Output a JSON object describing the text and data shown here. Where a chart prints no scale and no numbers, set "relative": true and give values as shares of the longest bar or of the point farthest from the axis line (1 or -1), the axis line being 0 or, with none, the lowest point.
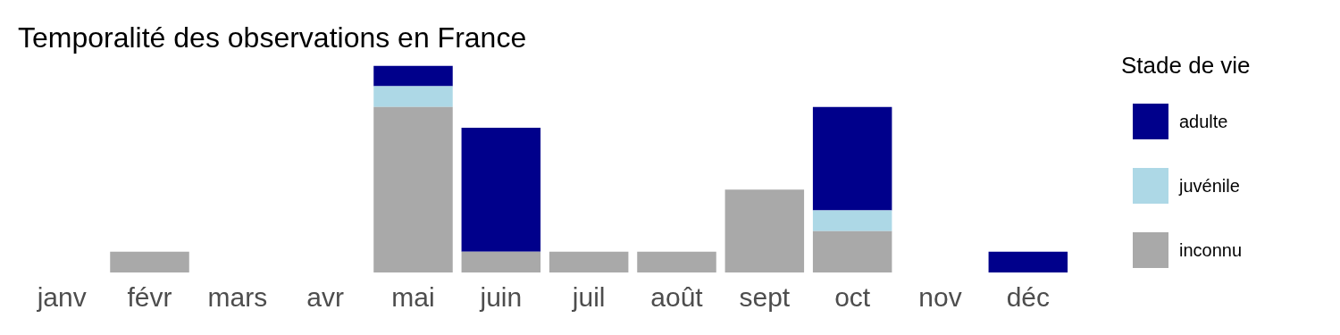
{
  "chart_data": {
    "type": "bar",
    "title": "Temporalité des observations en France",
    "legend_title": "Stade de vie",
    "categories": [
      "janv",
      "févr",
      "mars",
      "avr",
      "mai",
      "juin",
      "juil",
      "août",
      "sept",
      "oct",
      "nov",
      "déc"
    ],
    "stacked": true,
    "relative": true,
    "legend": "right",
    "grid": false,
    "series": [
      {
        "name": "inconnu",
        "color": "#a9a9a9",
        "values": [
          0,
          0.1,
          0,
          0,
          0.8,
          0.1,
          0.1,
          0.1,
          0.4,
          0.2,
          0,
          0
        ]
      },
      {
        "name": "juvénile",
        "color": "#add8e6",
        "values": [
          0,
          0,
          0,
          0,
          0.1,
          0,
          0,
          0,
          0,
          0.1,
          0,
          0
        ]
      },
      {
        "name": "adulte",
        "color": "#00008b",
        "values": [
          0,
          0,
          0,
          0,
          0.1,
          0.6,
          0,
          0,
          0,
          0.5,
          0,
          0.1
        ]
      }
    ]
  }
}
